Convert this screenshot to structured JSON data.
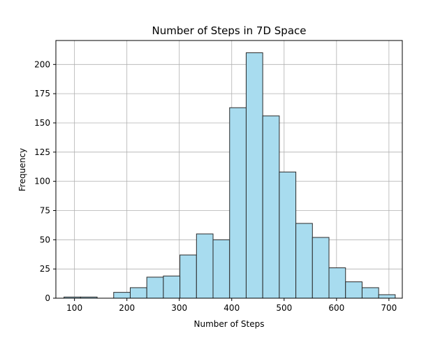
{
  "chart_data": {
    "type": "bar",
    "title": "Number of Steps in 7D Space",
    "xlabel": "Number of Steps",
    "ylabel": "Frequency",
    "xlim": [
      64.5,
      725.5
    ],
    "ylim": [
      0,
      220.5
    ],
    "xticks": [
      100,
      200,
      300,
      400,
      500,
      600,
      700
    ],
    "yticks": [
      0,
      25,
      50,
      75,
      100,
      125,
      150,
      175,
      200
    ],
    "grid": true,
    "bar_color": "#a8dcef",
    "edge_color": "#2a2a2a",
    "bins": [
      {
        "start": 80.0,
        "end": 111.6,
        "count": 1
      },
      {
        "start": 111.6,
        "end": 143.2,
        "count": 1
      },
      {
        "start": 143.2,
        "end": 174.8,
        "count": 0
      },
      {
        "start": 174.8,
        "end": 206.4,
        "count": 5
      },
      {
        "start": 206.4,
        "end": 238.0,
        "count": 9
      },
      {
        "start": 238.0,
        "end": 269.6,
        "count": 18
      },
      {
        "start": 269.6,
        "end": 301.2,
        "count": 19
      },
      {
        "start": 301.2,
        "end": 332.8,
        "count": 37
      },
      {
        "start": 332.8,
        "end": 364.4,
        "count": 55
      },
      {
        "start": 364.4,
        "end": 396.0,
        "count": 50
      },
      {
        "start": 396.0,
        "end": 427.6,
        "count": 163
      },
      {
        "start": 427.6,
        "end": 459.2,
        "count": 210
      },
      {
        "start": 459.2,
        "end": 490.8,
        "count": 156
      },
      {
        "start": 490.8,
        "end": 522.4,
        "count": 108
      },
      {
        "start": 522.4,
        "end": 554.0,
        "count": 64
      },
      {
        "start": 554.0,
        "end": 585.6,
        "count": 52
      },
      {
        "start": 585.6,
        "end": 617.2,
        "count": 26
      },
      {
        "start": 617.2,
        "end": 648.8,
        "count": 14
      },
      {
        "start": 648.8,
        "end": 680.4,
        "count": 9
      },
      {
        "start": 680.4,
        "end": 712.0,
        "count": 3
      }
    ]
  }
}
